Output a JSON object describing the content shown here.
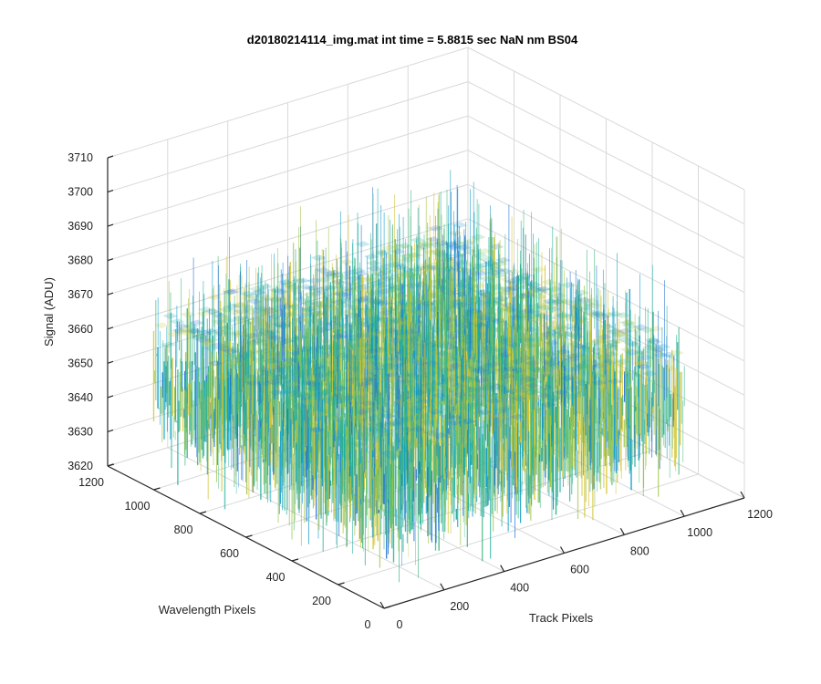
{
  "chart_data": {
    "type": "surface",
    "title": "d20180214114_img.mat int time = 5.8815 sec  NaN nm BS04",
    "xlabel": "Track Pixels",
    "ylabel": "Wavelength Pixels",
    "zlabel": "Signal (ADU)",
    "xlim": [
      0,
      1200
    ],
    "ylim": [
      0,
      1200
    ],
    "zlim": [
      3620,
      3710
    ],
    "x_ticks": [
      "0",
      "200",
      "400",
      "600",
      "800",
      "1000",
      "1200"
    ],
    "y_ticks": [
      "0",
      "200",
      "400",
      "600",
      "800",
      "1000",
      "1200"
    ],
    "z_ticks": [
      "3620",
      "3630",
      "3640",
      "3650",
      "3660",
      "3670",
      "3680",
      "3690",
      "3700",
      "3710"
    ],
    "surface": {
      "x_extent": [
        0,
        1000
      ],
      "y_extent": [
        0,
        1000
      ],
      "mean_signal": 3650,
      "signal_min": 3625,
      "signal_max": 3690,
      "colormap": [
        "#1f6fd1",
        "#0f9cc9",
        "#1fae9a",
        "#3cb880",
        "#9ec64a",
        "#d4c32e"
      ]
    },
    "grid": true
  }
}
